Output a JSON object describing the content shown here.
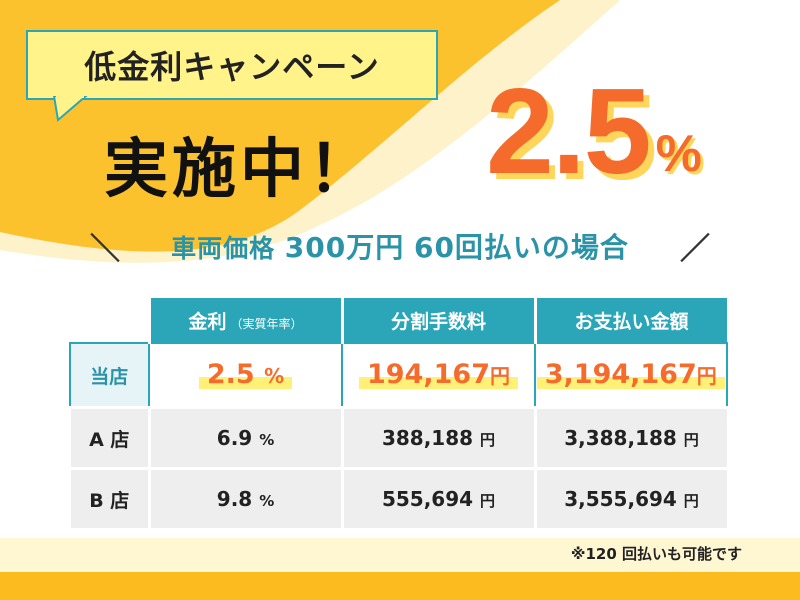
{
  "colors": {
    "accent_orange": "#f46b2c",
    "teal": "#2aa6b8",
    "yellow": "#fcbc1f",
    "highlight": "#fff178"
  },
  "campaign": {
    "badge": "低金利キャンペーン",
    "headline": "実施中！",
    "rate_number": "2.5",
    "rate_unit": "%"
  },
  "condition": {
    "left_slash": "＼",
    "price_label": "車両価格",
    "price_value": "300万円",
    "installments": "60回払いの場合",
    "right_slash": "／"
  },
  "table": {
    "headers": {
      "rate": "金利",
      "rate_note": "（実質年率）",
      "fee": "分割手数料",
      "total": "お支払い金額"
    },
    "own": {
      "label": "当店",
      "rate": "2.5",
      "rate_unit": "%",
      "fee": "194,167",
      "fee_unit": "円",
      "total": "3,194,167",
      "total_unit": "円"
    },
    "others": [
      {
        "label": "A 店",
        "rate": "6.9",
        "rate_unit": "%",
        "fee": "388,188",
        "fee_unit": "円",
        "total": "3,388,188",
        "total_unit": "円"
      },
      {
        "label": "B 店",
        "rate": "9.8",
        "rate_unit": "%",
        "fee": "555,694",
        "fee_unit": "円",
        "total": "3,555,694",
        "total_unit": "円"
      }
    ]
  },
  "footnote": "※120 回払いも可能です"
}
